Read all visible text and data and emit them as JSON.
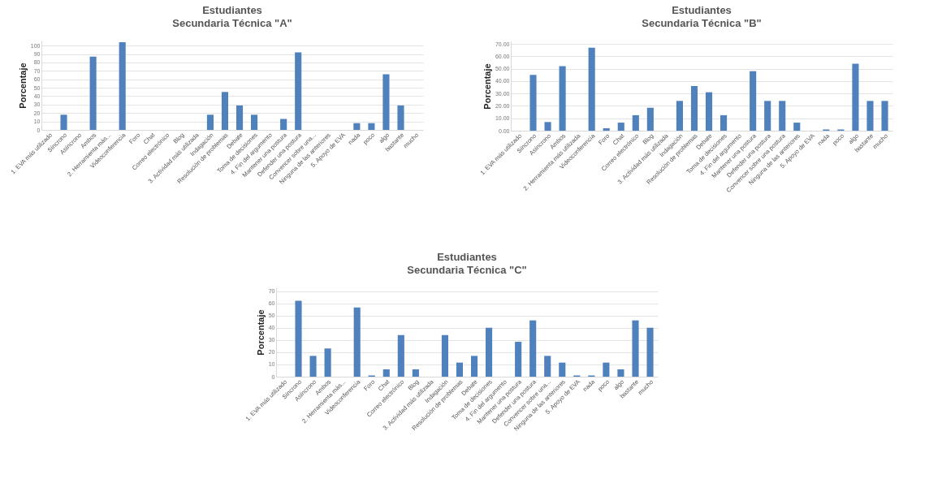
{
  "chart_data": [
    {
      "type": "bar",
      "title": "Estudiantes",
      "subtitle": "Secundaria Técnica \"A\"",
      "ylabel": "Porcentaje",
      "grid": "y",
      "legend": false,
      "categories": [
        "1. EVA más utilizado",
        "Síncrono",
        "Asíncrono",
        "Ambos",
        "2. Herramienta más...",
        "Videoconferencia",
        "Foro",
        "Chat",
        "Correo electrónico",
        "Blog",
        "3. Actividad más utilizada",
        "Indagación",
        "Resolución de problemas",
        "Debate",
        "Toma de decisiones",
        "4. Fin del argumento",
        "Mantener una postura",
        "Defender una postura",
        "Convencer sobre una...",
        "Ninguna de las anteriores",
        "5. Apoyo de EVA",
        "nada",
        "poco",
        "algo",
        "bastante",
        "mucho"
      ],
      "series": [
        {
          "color": "#4f81bd",
          "values": [
            0,
            18,
            0,
            87,
            0,
            104,
            0,
            0,
            0,
            0,
            0,
            18,
            45,
            29,
            18,
            0,
            13,
            92,
            0,
            0,
            0,
            8,
            8,
            66,
            29,
            0
          ]
        }
      ],
      "ylim": [
        0,
        106
      ],
      "yticks": [
        0,
        10,
        20,
        30,
        40,
        50,
        60,
        70,
        80,
        90,
        100
      ]
    },
    {
      "type": "bar",
      "title": "Estudiantes",
      "subtitle": "Secundaria Técnica \"B\"",
      "ylabel": "Porcentaje",
      "grid": "y",
      "legend": false,
      "categories": [
        "1. EVA más utilizado",
        "Síncrono",
        "Asíncrono",
        "Ambos",
        "2. Herramienta más utilizada",
        "Videoconferencia",
        "Foro",
        "Chat",
        "Correo electrónico",
        "Blog",
        "3. Actividad más utilizada",
        "Indagación",
        "Resolución de problemas",
        "Debate",
        "Toma de decisiones",
        "4. Fin del argumento",
        "Mantener una postura",
        "Defender una postura",
        "Convencer sobre una postura",
        "Ninguna de las anteriores",
        "5. Apoyo de EVA",
        "nada",
        "poco",
        "algo",
        "bastante",
        "mucho"
      ],
      "series": [
        {
          "color": "#4f81bd",
          "values": [
            0,
            45,
            7,
            52,
            0,
            67,
            2,
            6.5,
            12.5,
            18.5,
            0,
            24,
            36,
            31,
            12.5,
            0,
            48,
            24,
            24,
            6.5,
            0,
            1,
            1,
            54,
            24,
            24
          ]
        }
      ],
      "ylim": [
        0,
        72
      ],
      "yticks": [
        {
          "value": 0,
          "label": "0.00"
        },
        {
          "value": 10,
          "label": "10.00"
        },
        {
          "value": 20,
          "label": "20.00"
        },
        {
          "value": 30,
          "label": "30.00"
        },
        {
          "value": 40,
          "label": "40.00"
        },
        {
          "value": 50,
          "label": "50.00"
        },
        {
          "value": 60,
          "label": "60.00"
        },
        {
          "value": 70,
          "label": "70.00"
        }
      ]
    },
    {
      "type": "bar",
      "title": "Estudiantes",
      "subtitle": "Secundaria Técnica \"C\"",
      "ylabel": "Porcentaje",
      "grid": "y",
      "legend": false,
      "categories": [
        "1. EVA más utilizado",
        "Síncrono",
        "Asíncrono",
        "Ambos",
        "2. Herramienta más...",
        "Videoconferencia",
        "Foro",
        "Chat",
        "Correo electrónico",
        "Blog",
        "3. Actividad más utilizada",
        "Indagación",
        "Resolución de problemas",
        "Debate",
        "Toma de decisiones",
        "4. Fin del argumento",
        "Mantener una postura",
        "Defender una postura",
        "Convencer sobre una...",
        "Ninguna de las anteriores",
        "5. Apoyo de EVA",
        "nada",
        "poco",
        "algo",
        "bastante",
        "mucho"
      ],
      "series": [
        {
          "color": "#4f81bd",
          "values": [
            0,
            62,
            17,
            23,
            0,
            56.5,
            1,
            6,
            34,
            6,
            0,
            34,
            11.5,
            17,
            40,
            0,
            28.5,
            46,
            17,
            11.5,
            1,
            1,
            11.5,
            6,
            46,
            40
          ]
        }
      ],
      "ylim": [
        0,
        73
      ],
      "yticks": [
        0,
        10,
        20,
        30,
        40,
        50,
        60,
        70
      ]
    }
  ]
}
